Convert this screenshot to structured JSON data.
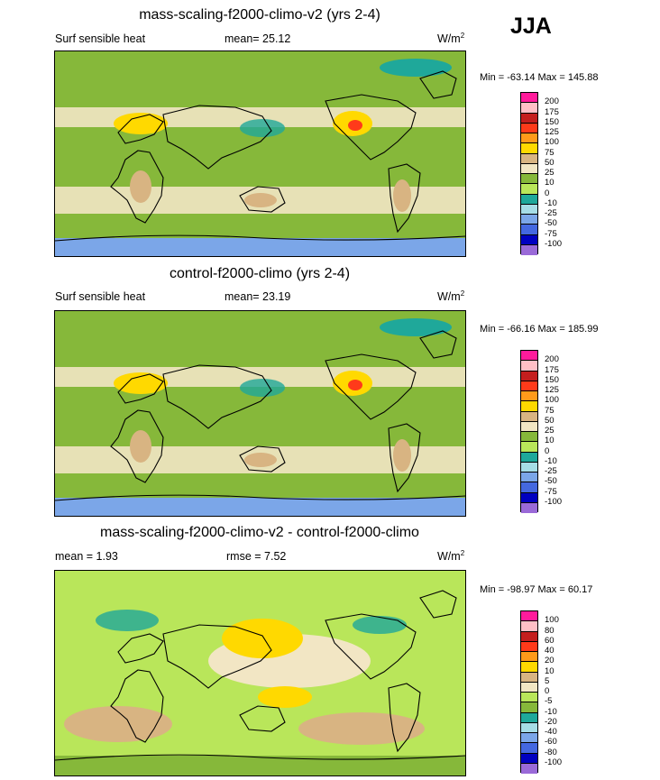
{
  "season": "JJA",
  "panels": [
    {
      "title": "mass-scaling-f2000-climo-v2 (yrs 2-4)",
      "left_label": "Surf sensible heat",
      "mid_label": "mean=  25.12",
      "units_base": "W/m",
      "units_exp": "2",
      "minmax": "Min = -63.14 Max = 145.88",
      "levels": [
        "200",
        "175",
        "150",
        "125",
        "100",
        "75",
        "50",
        "25",
        "10",
        "0",
        "-10",
        "-25",
        "-50",
        "-75",
        "-100"
      ],
      "colors": [
        "#ff1b9b",
        "#ffbfc6",
        "#c41e1e",
        "#ff3a1a",
        "#ff9a1a",
        "#ffd900",
        "#d8b482",
        "#f2e6c4",
        "#86b83a",
        "#b9e65a",
        "#1fa89a",
        "#a6dde6",
        "#7ba6e8",
        "#4468e0",
        "#0000c0",
        "#9a6ad8"
      ],
      "map": {
        "mean_color": "#86b83a",
        "style": "absolute"
      }
    },
    {
      "title": "control-f2000-climo (yrs 2-4)",
      "left_label": "Surf sensible heat",
      "mid_label": "mean=  23.19",
      "units_base": "W/m",
      "units_exp": "2",
      "minmax": "Min = -66.16 Max = 185.99",
      "levels": [
        "200",
        "175",
        "150",
        "125",
        "100",
        "75",
        "50",
        "25",
        "10",
        "0",
        "-10",
        "-25",
        "-50",
        "-75",
        "-100"
      ],
      "colors": [
        "#ff1b9b",
        "#ffbfc6",
        "#c41e1e",
        "#ff3a1a",
        "#ff9a1a",
        "#ffd900",
        "#d8b482",
        "#f2e6c4",
        "#86b83a",
        "#b9e65a",
        "#1fa89a",
        "#a6dde6",
        "#7ba6e8",
        "#4468e0",
        "#0000c0",
        "#9a6ad8"
      ],
      "map": {
        "mean_color": "#86b83a",
        "style": "absolute"
      }
    },
    {
      "title": "mass-scaling-f2000-climo-v2 - control-f2000-climo",
      "left_label": "mean =   1.93",
      "mid_label": "rmse =   7.52",
      "units_base": "W/m",
      "units_exp": "2",
      "minmax": "Min = -98.97 Max =  60.17",
      "levels": [
        "100",
        "80",
        "60",
        "40",
        "20",
        "10",
        "5",
        "0",
        "-5",
        "-10",
        "-20",
        "-40",
        "-60",
        "-80",
        "-100"
      ],
      "colors": [
        "#ff1b9b",
        "#ffbfc6",
        "#c41e1e",
        "#ff3a1a",
        "#ff9a1a",
        "#ffd900",
        "#d8b482",
        "#f2e6c4",
        "#b9e65a",
        "#86b83a",
        "#1fa89a",
        "#a6dde6",
        "#7ba6e8",
        "#4468e0",
        "#0000c0",
        "#9a6ad8"
      ],
      "map": {
        "mean_color": "#b9e65a",
        "style": "difference"
      }
    }
  ]
}
